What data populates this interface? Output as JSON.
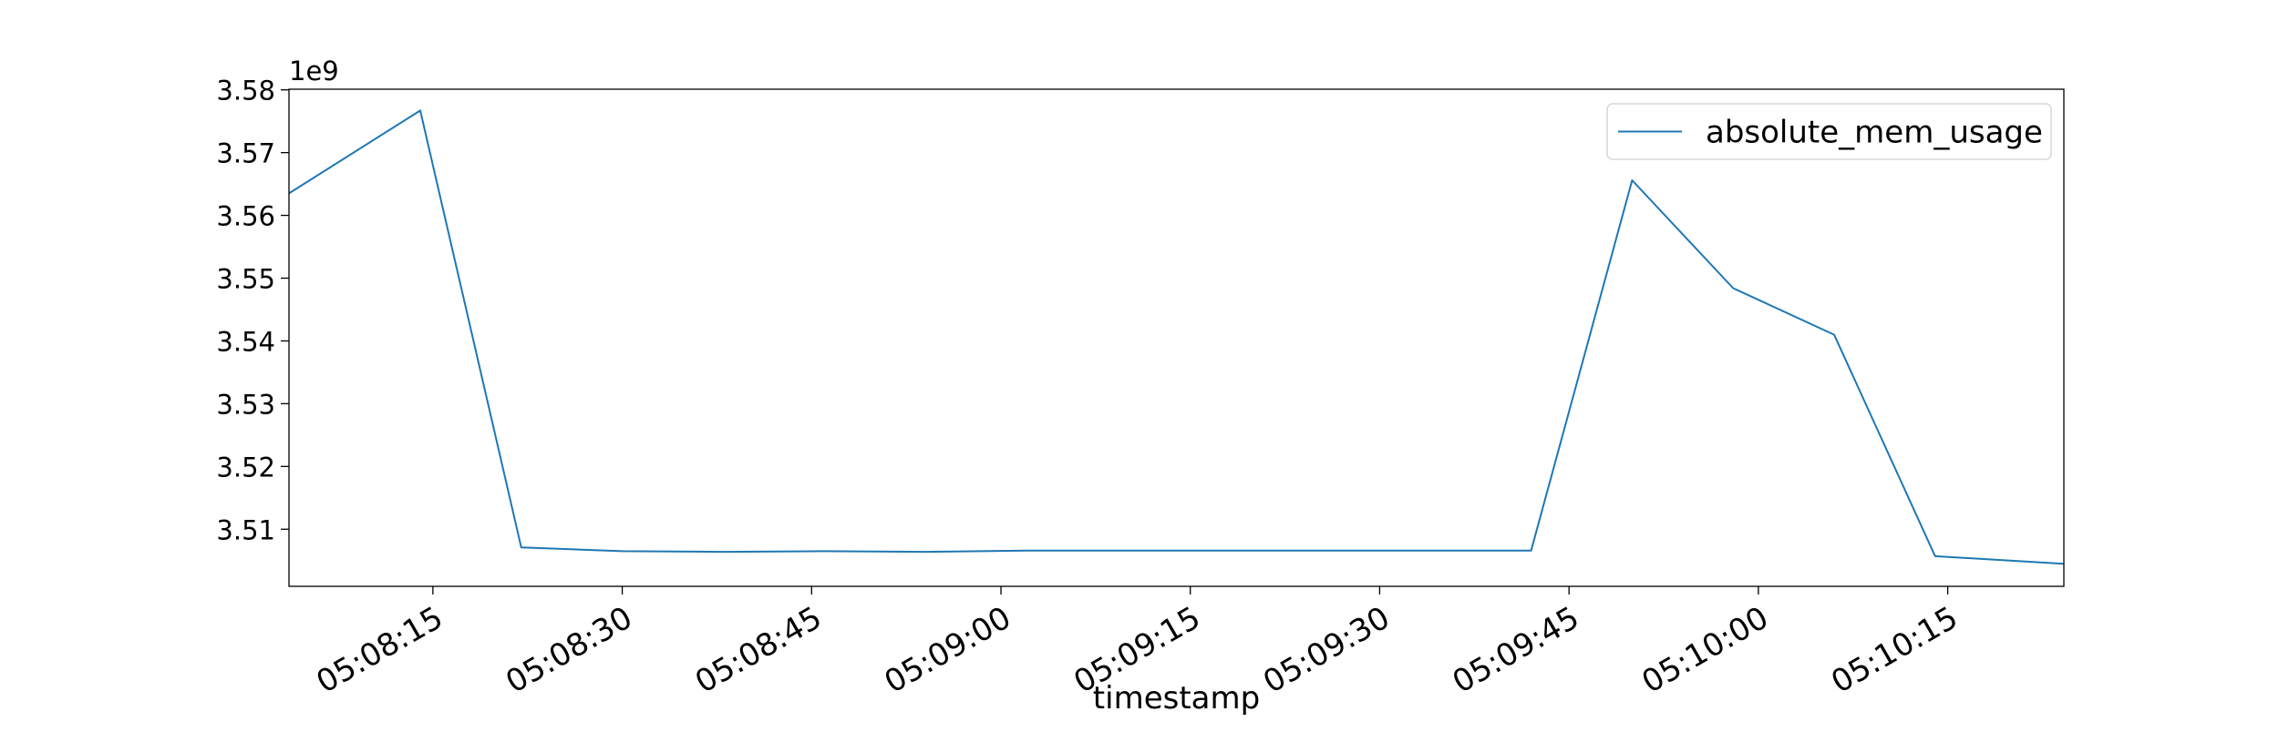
{
  "chart_data": {
    "type": "line",
    "title": "",
    "xlabel": "timestamp",
    "ylabel": "",
    "y_offset_text": "1e9",
    "y_scale": 1000000000,
    "grid": false,
    "legend_position": "top-right",
    "x_tick_labels": [
      "05:08:15",
      "05:08:30",
      "05:08:45",
      "05:09:00",
      "05:09:15",
      "05:09:30",
      "05:09:45",
      "05:10:00",
      "05:10:15"
    ],
    "x_ticks": [
      "05:08:15",
      "05:08:30",
      "05:08:45",
      "05:09:00",
      "05:09:15",
      "05:09:30",
      "05:09:45",
      "05:10:00",
      "05:10:15"
    ],
    "xlim": [
      "05:08:03.6",
      "05:10:24.2"
    ],
    "y_tick_labels": [
      "3.51",
      "3.52",
      "3.53",
      "3.54",
      "3.55",
      "3.56",
      "3.57",
      "3.58"
    ],
    "y_ticks": [
      3510000000,
      3520000000,
      3530000000,
      3540000000,
      3550000000,
      3560000000,
      3570000000,
      3580000000
    ],
    "ylim": [
      3500900000,
      3580100000
    ],
    "series": [
      {
        "name": "absolute_mem_usage",
        "color": "#1f77b4",
        "x": [
          "05:08:03.6",
          "05:08:14",
          "05:08:22",
          "05:08:30",
          "05:08:38",
          "05:08:46",
          "05:08:54",
          "05:09:02",
          "05:09:10",
          "05:09:18",
          "05:09:26",
          "05:09:34",
          "05:09:42",
          "05:09:50",
          "05:09:58",
          "05:10:06",
          "05:10:14",
          "05:10:24.2"
        ],
        "values": [
          3563500000,
          3576700000,
          3507100000,
          3506500000,
          3506400000,
          3506500000,
          3506400000,
          3506600000,
          3506600000,
          3506600000,
          3506600000,
          3506600000,
          3506600000,
          3565600000,
          3548400000,
          3541000000,
          3505700000,
          3504500000
        ]
      }
    ]
  }
}
